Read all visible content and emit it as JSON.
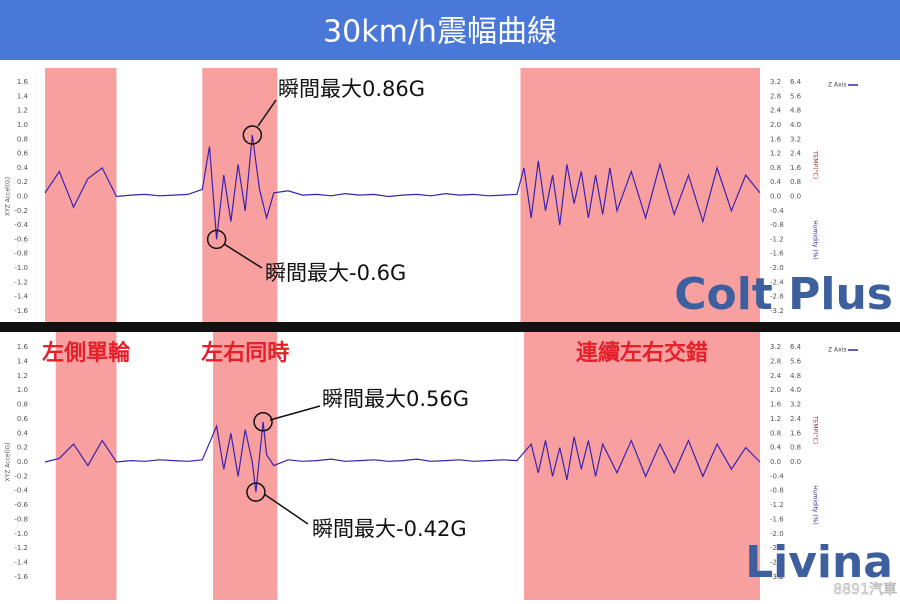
{
  "title": "30km/h震幅曲線",
  "watermark": "8891汽車",
  "chart_data": [
    {
      "type": "line",
      "label": "Colt Plus",
      "y_label": "XYZ Accel(G)",
      "y2_label": "TEMP(°C)",
      "y3_label": "Humidity (%)",
      "xlim": [
        0,
        100
      ],
      "ylim": [
        -1.7,
        1.7
      ],
      "yticks": [
        1.6,
        1.4,
        1.2,
        {
          "value": 1,
          "label": "1.0"
        },
        0.8,
        0.6,
        0.4,
        0.2,
        {
          "value": 0,
          "label": "0.0"
        },
        -0.2,
        -0.4,
        -0.6,
        -0.8,
        {
          "value": -1,
          "label": "-1.0"
        },
        -1.2,
        -1.4,
        -1.6
      ],
      "y2lim": [
        -3.4,
        3.4
      ],
      "y2ticks": [
        3.2,
        2.8,
        2.4,
        {
          "value": 2,
          "label": "2.0"
        },
        1.6,
        1.2,
        0.8,
        0.4,
        {
          "value": 0,
          "label": "0.0"
        },
        -0.4,
        -0.8,
        -1.2,
        -1.6,
        {
          "value": -2,
          "label": "-2.0"
        },
        -2.4,
        -2.8,
        -3.2
      ],
      "y3lim": [
        -6.8,
        6.8
      ],
      "y3ticks": [
        6.4,
        5.6,
        4.8,
        {
          "value": 4,
          "label": "4.0"
        },
        3.2,
        2.4,
        1.6,
        0.8,
        {
          "value": 0,
          "label": "0.0"
        }
      ],
      "regions": [
        {
          "x": [
            0,
            10
          ]
        },
        {
          "x": [
            22,
            32.5
          ]
        },
        {
          "x": [
            66.5,
            100
          ]
        }
      ],
      "region_color": "#f8a0a0",
      "x": [
        0,
        2,
        4,
        6,
        8,
        10,
        12,
        14,
        16,
        18,
        20,
        22,
        23,
        24,
        25,
        26,
        27,
        28,
        29,
        30,
        31,
        32,
        34,
        36,
        38,
        40,
        42,
        44,
        46,
        48,
        50,
        52,
        54,
        56,
        58,
        60,
        62,
        64,
        66,
        67,
        68,
        69,
        70,
        71,
        72,
        73,
        74,
        75,
        76,
        77,
        78,
        79,
        80,
        82,
        84,
        86,
        88,
        90,
        92,
        94,
        96,
        98,
        100
      ],
      "series": [
        {
          "name": "Z Axis",
          "color": "#3b22b0",
          "values": [
            0.05,
            0.35,
            -0.15,
            0.25,
            0.4,
            0,
            0.02,
            0.03,
            0.01,
            0.02,
            0.03,
            0.1,
            0.7,
            -0.6,
            0.3,
            -0.35,
            0.45,
            -0.2,
            0.86,
            0.1,
            -0.3,
            0.05,
            0.08,
            0.02,
            0.03,
            0.01,
            0.04,
            0.02,
            0.03,
            0,
            0.02,
            0.03,
            0.01,
            0.04,
            0.02,
            0.03,
            0.01,
            0.02,
            0.03,
            0.4,
            -0.3,
            0.5,
            -0.2,
            0.3,
            -0.4,
            0.45,
            -0.1,
            0.35,
            -0.3,
            0.3,
            -0.25,
            0.4,
            -0.2,
            0.35,
            -0.3,
            0.45,
            -0.25,
            0.3,
            -0.35,
            0.4,
            -0.2,
            0.3,
            0.05
          ]
        }
      ],
      "annotations": [
        "瞬間最大0.86G",
        "瞬間最大-0.6G"
      ]
    },
    {
      "type": "line",
      "label": "Livina",
      "y_label": "XYZ Accel(G)",
      "y2_label": "TEMP(°C)",
      "y3_label": "Humidity (%)",
      "xlim": [
        0,
        100
      ],
      "ylim": [
        -1.7,
        1.7
      ],
      "yticks": [
        1.6,
        1.4,
        1.2,
        {
          "value": 1,
          "label": "1.0"
        },
        0.8,
        0.6,
        0.4,
        0.2,
        {
          "value": 0,
          "label": "0.0"
        },
        -0.2,
        -0.4,
        -0.6,
        -0.8,
        {
          "value": -1,
          "label": "-1.0"
        },
        -1.2,
        -1.4,
        -1.6
      ],
      "y2lim": [
        -3.4,
        3.4
      ],
      "y2ticks": [
        3.2,
        2.8,
        2.4,
        {
          "value": 2,
          "label": "2.0"
        },
        1.6,
        1.2,
        0.8,
        0.4,
        {
          "value": 0,
          "label": "0.0"
        },
        -0.4,
        -0.8,
        -1.2,
        -1.6,
        {
          "value": -2,
          "label": "-2.0"
        },
        -2.4,
        -2.8,
        -3.2
      ],
      "y3lim": [
        -6.8,
        6.8
      ],
      "y3ticks": [
        6.4,
        5.6,
        4.8,
        {
          "value": 4,
          "label": "4.0"
        },
        3.2,
        2.4,
        1.6,
        0.8,
        {
          "value": 0,
          "label": "0.0"
        }
      ],
      "regions": [
        {
          "x": [
            1.5,
            10
          ],
          "label": "左側單輪"
        },
        {
          "x": [
            23.5,
            32.5
          ],
          "label": "左右同時"
        },
        {
          "x": [
            67,
            100
          ],
          "label": "連續左右交錯"
        }
      ],
      "region_color": "#f8a0a0",
      "x": [
        0,
        2,
        4,
        6,
        8,
        10,
        12,
        14,
        16,
        18,
        20,
        22,
        24,
        25,
        26,
        27,
        28,
        29,
        29.5,
        30.5,
        31,
        32,
        34,
        36,
        38,
        40,
        42,
        44,
        46,
        48,
        50,
        52,
        54,
        56,
        58,
        60,
        62,
        64,
        66,
        68,
        69,
        70,
        71,
        72,
        73,
        74,
        75,
        76,
        77,
        78,
        80,
        82,
        84,
        86,
        88,
        90,
        92,
        94,
        96,
        98,
        100
      ],
      "series": [
        {
          "name": "Z Axis",
          "color": "#3b22b0",
          "values": [
            0,
            0.05,
            0.25,
            -0.05,
            0.3,
            0,
            0.02,
            0.01,
            0.03,
            0.02,
            0.01,
            0.03,
            0.5,
            -0.1,
            0.4,
            -0.2,
            0.45,
            0,
            -0.42,
            0.56,
            0.1,
            -0.05,
            0.03,
            0.01,
            0.02,
            0.04,
            0.01,
            0.02,
            0.03,
            0.01,
            0.02,
            0.04,
            0.01,
            0.02,
            0.03,
            0.01,
            0.02,
            0.03,
            0.02,
            0.25,
            -0.15,
            0.3,
            -0.2,
            0.2,
            -0.25,
            0.35,
            -0.1,
            0.3,
            -0.2,
            0.25,
            -0.15,
            0.3,
            -0.2,
            0.25,
            -0.15,
            0.3,
            -0.2,
            0.25,
            -0.1,
            0.2,
            0
          ]
        }
      ],
      "annotations": [
        "瞬間最大0.56G",
        "瞬間最大-0.42G"
      ]
    }
  ]
}
